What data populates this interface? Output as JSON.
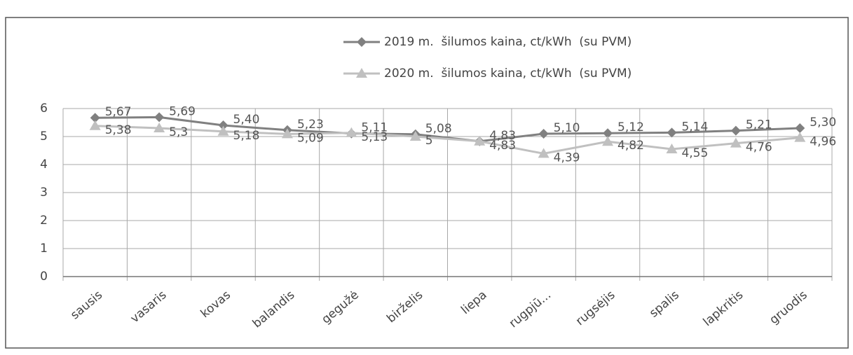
{
  "chart_data": {
    "type": "line",
    "categories": [
      "sausis",
      "vasaris",
      "kovas",
      "balandis",
      "gegužė",
      "birželis",
      "liepa",
      "rugpjū...",
      "rugsėjis",
      "spalis",
      "lapkritis",
      "gruodis"
    ],
    "series": [
      {
        "name": "2019 m.  šilumos kaina, ct/kWh  (su PVM)",
        "color": "#808080",
        "marker": "diamond",
        "values": [
          5.67,
          5.69,
          5.4,
          5.23,
          5.11,
          5.08,
          4.83,
          5.1,
          5.12,
          5.14,
          5.21,
          5.3
        ],
        "value_labels": [
          "5,67",
          "5,69",
          "5,40",
          "5,23",
          "5,11",
          "5,08",
          "4,83",
          "5,10",
          "5,12",
          "5,14",
          "5,21",
          "5,30"
        ]
      },
      {
        "name": "2020 m.  šilumos kaina, ct/kWh  (su PVM)",
        "color": "#c0c0c0",
        "marker": "triangle",
        "values": [
          5.38,
          5.3,
          5.18,
          5.09,
          5.13,
          5,
          4.83,
          4.39,
          4.82,
          4.55,
          4.76,
          4.96
        ],
        "value_labels": [
          "5,38",
          "5,3",
          "5,18",
          "5,09",
          "5,13",
          "5",
          "4,83",
          "4,39",
          "4,82",
          "4,55",
          "4,76",
          "4,96"
        ]
      }
    ],
    "ylim": [
      0,
      6
    ],
    "yticks": [
      0,
      1,
      2,
      3,
      4,
      5,
      6
    ],
    "grid": true,
    "legend": "top"
  }
}
